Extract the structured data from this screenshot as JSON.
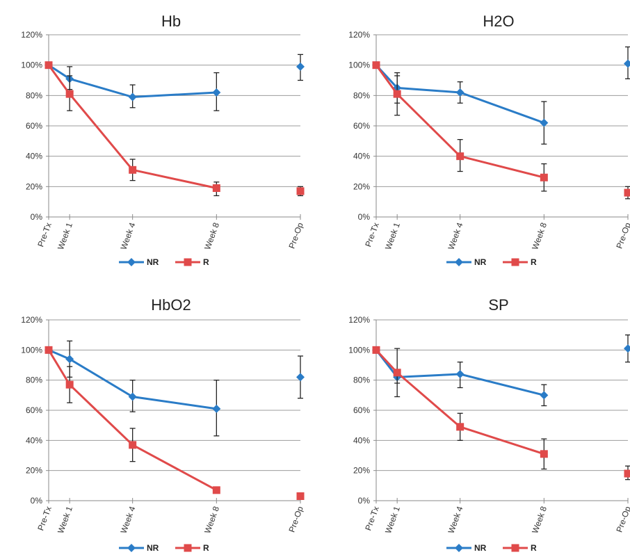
{
  "colors": {
    "NR": "#2a7cc7",
    "R": "#e04a4a",
    "grid": "#9b9b9b",
    "axis": "#8a8a8a",
    "error": "#222222"
  },
  "chart_data": [
    {
      "type": "line",
      "title": "Hb",
      "categories": [
        "Pre-Tx",
        "Week 1",
        "Week 4",
        "Week 8",
        "Pre-Op"
      ],
      "x_weeks": [
        0,
        1,
        4,
        8,
        12
      ],
      "yticks": [
        "0%",
        "20%",
        "40%",
        "60%",
        "80%",
        "100%",
        "120%"
      ],
      "ylim": [
        0,
        120
      ],
      "grid": true,
      "legend": "bottom",
      "series": [
        {
          "name": "NR",
          "marker": "diamond",
          "values": [
            100,
            91,
            79,
            82,
            99
          ],
          "lines": [
            0,
            1,
            2,
            3
          ],
          "err_low": [
            null,
            84,
            72,
            70,
            90
          ],
          "err_high": [
            null,
            99,
            87,
            95,
            107
          ]
        },
        {
          "name": "R",
          "marker": "square",
          "values": [
            100,
            81,
            31,
            19,
            17
          ],
          "lines": [
            0,
            1,
            2,
            3
          ],
          "err_low": [
            null,
            70,
            24,
            14,
            14
          ],
          "err_high": [
            null,
            93,
            38,
            23,
            20
          ]
        }
      ]
    },
    {
      "type": "line",
      "title": "H2O",
      "categories": [
        "Pre-Tx",
        "Week 1",
        "Week 4",
        "Week 8",
        "Pre-Op"
      ],
      "x_weeks": [
        0,
        1,
        4,
        8,
        12
      ],
      "yticks": [
        "0%",
        "20%",
        "40%",
        "60%",
        "80%",
        "100%",
        "120%"
      ],
      "ylim": [
        0,
        120
      ],
      "grid": true,
      "legend": "bottom",
      "series": [
        {
          "name": "NR",
          "marker": "diamond",
          "values": [
            100,
            85,
            82,
            62,
            101
          ],
          "lines": [
            0,
            1,
            2,
            3
          ],
          "err_low": [
            null,
            75,
            75,
            48,
            91
          ],
          "err_high": [
            null,
            95,
            89,
            76,
            112
          ]
        },
        {
          "name": "R",
          "marker": "square",
          "values": [
            100,
            81,
            40,
            26,
            16
          ],
          "lines": [
            0,
            1,
            2,
            3
          ],
          "err_low": [
            null,
            67,
            30,
            17,
            12
          ],
          "err_high": [
            null,
            93,
            51,
            35,
            20
          ]
        }
      ]
    },
    {
      "type": "line",
      "title": "HbO2",
      "categories": [
        "Pre-Tx",
        "Week 1",
        "Week 4",
        "Week 8",
        "Pre-Op"
      ],
      "x_weeks": [
        0,
        1,
        4,
        8,
        12
      ],
      "yticks": [
        "0%",
        "20%",
        "40%",
        "60%",
        "80%",
        "100%",
        "120%"
      ],
      "ylim": [
        0,
        120
      ],
      "grid": true,
      "legend": "bottom",
      "series": [
        {
          "name": "NR",
          "marker": "diamond",
          "values": [
            100,
            94,
            69,
            61,
            82
          ],
          "lines": [
            0,
            1,
            2,
            3
          ],
          "err_low": [
            null,
            82,
            59,
            43,
            68
          ],
          "err_high": [
            null,
            106,
            80,
            80,
            96
          ]
        },
        {
          "name": "R",
          "marker": "square",
          "values": [
            100,
            77,
            37,
            7,
            3
          ],
          "lines": [
            0,
            1,
            2,
            3
          ],
          "err_low": [
            null,
            65,
            26,
            5,
            1
          ],
          "err_high": [
            null,
            89,
            48,
            9,
            5
          ]
        }
      ]
    },
    {
      "type": "line",
      "title": "SP",
      "categories": [
        "Pre-Tx",
        "Week 1",
        "Week 4",
        "Week 8",
        "Pre-Op"
      ],
      "x_weeks": [
        0,
        1,
        4,
        8,
        12
      ],
      "yticks": [
        "0%",
        "20%",
        "40%",
        "60%",
        "80%",
        "100%",
        "120%"
      ],
      "ylim": [
        0,
        120
      ],
      "grid": true,
      "legend": "bottom",
      "series": [
        {
          "name": "NR",
          "marker": "diamond",
          "values": [
            100,
            82,
            84,
            70,
            101
          ],
          "lines": [
            0,
            1,
            2,
            3
          ],
          "err_low": [
            null,
            78,
            75,
            63,
            92
          ],
          "err_high": [
            null,
            86,
            92,
            77,
            110
          ]
        },
        {
          "name": "R",
          "marker": "square",
          "values": [
            100,
            85,
            49,
            31,
            18
          ],
          "lines": [
            0,
            1,
            2,
            3
          ],
          "err_low": [
            null,
            69,
            40,
            21,
            14
          ],
          "err_high": [
            null,
            101,
            58,
            41,
            23
          ]
        }
      ]
    }
  ]
}
